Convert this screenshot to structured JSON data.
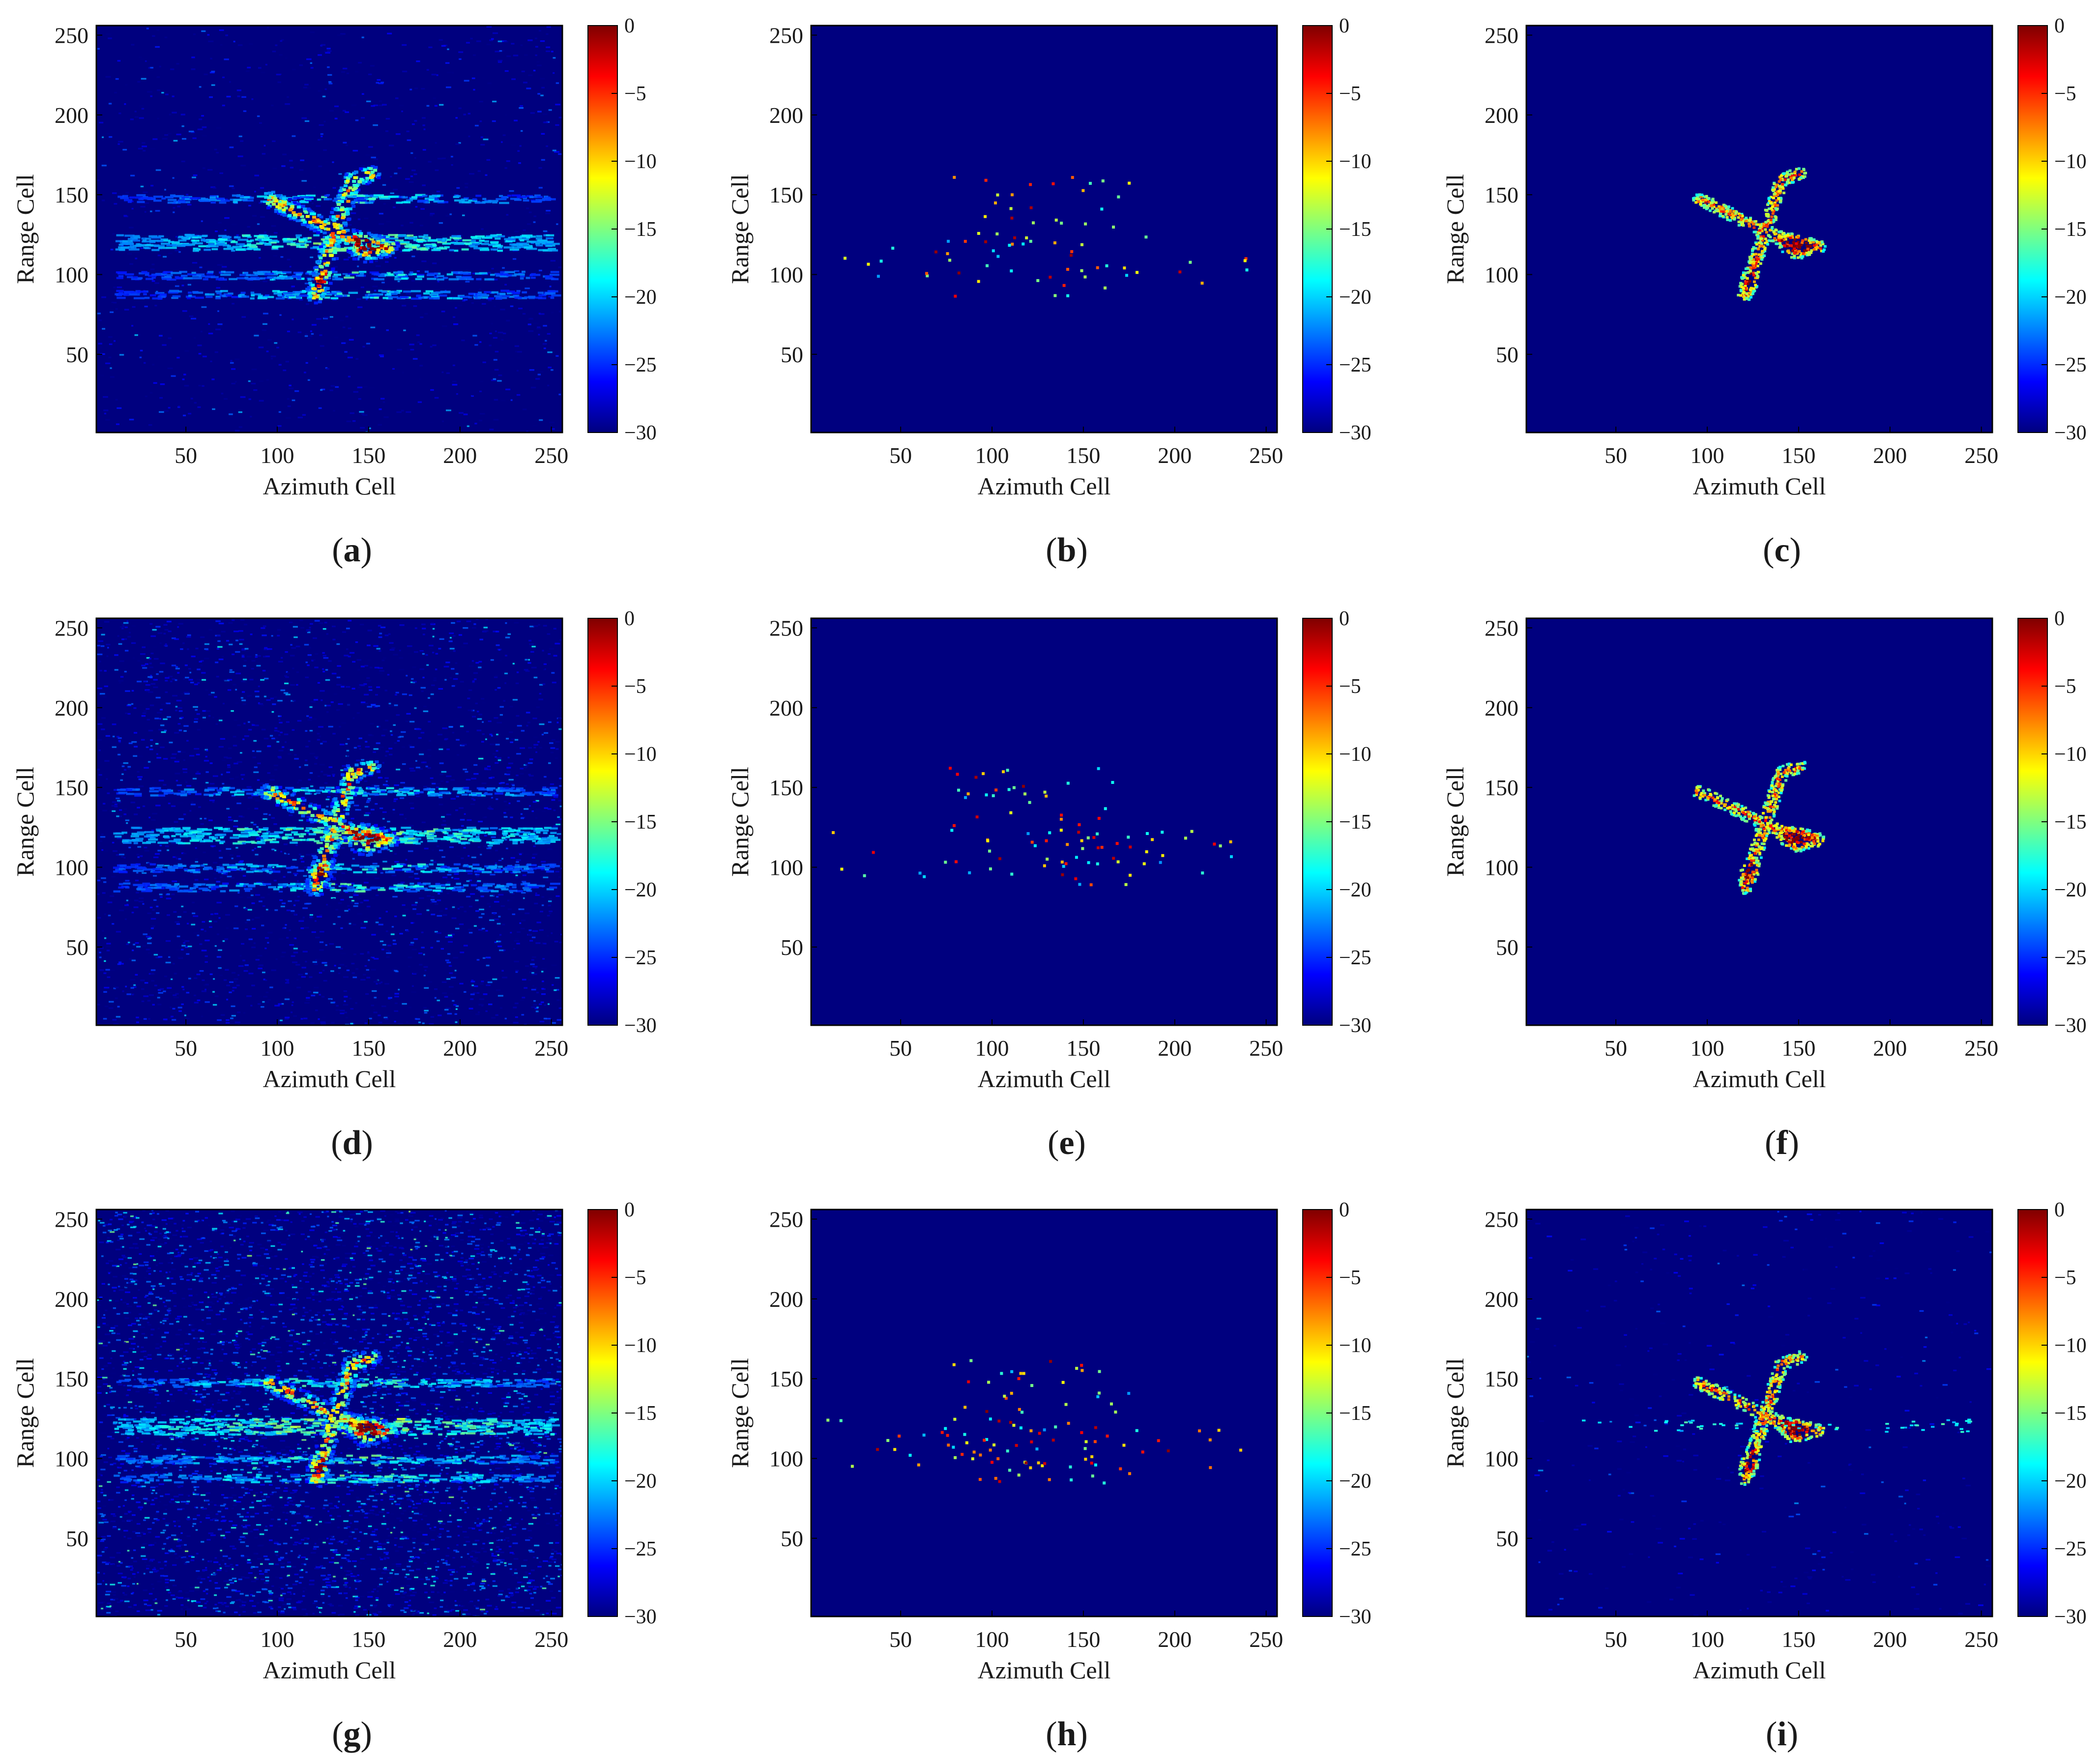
{
  "colormap": {
    "name": "jet",
    "stops": [
      "#00007f",
      "#0000ff",
      "#007fff",
      "#00ffff",
      "#7fff7f",
      "#ffff00",
      "#ff7f00",
      "#ff0000",
      "#7f0000"
    ],
    "range": [
      -30,
      0
    ],
    "ticks": [
      "0",
      "−5",
      "−10",
      "−15",
      "−20",
      "−25",
      "−30"
    ]
  },
  "chart_data": [
    {
      "id": "a",
      "type": "heatmap",
      "caption": "a",
      "render_style": "speckle",
      "noise": 0.12,
      "xlabel": "Azimuth Cell",
      "ylabel": "Range Cell",
      "xticks": [
        50,
        100,
        150,
        200,
        250
      ],
      "yticks": [
        50,
        100,
        150,
        200,
        250
      ],
      "xlim": [
        1,
        256
      ],
      "ylim": [
        1,
        256
      ],
      "zlim": [
        -30,
        0
      ],
      "colorbar": true
    },
    {
      "id": "b",
      "type": "heatmap",
      "caption": "b",
      "render_style": "sparse",
      "noise": 0,
      "xlabel": "Azimuth Cell",
      "ylabel": "Range Cell",
      "xticks": [
        50,
        100,
        150,
        200,
        250
      ],
      "yticks": [
        50,
        100,
        150,
        200,
        250
      ],
      "xlim": [
        1,
        256
      ],
      "ylim": [
        1,
        256
      ],
      "zlim": [
        -30,
        0
      ],
      "colorbar": true
    },
    {
      "id": "c",
      "type": "heatmap",
      "caption": "c",
      "render_style": "clean",
      "noise": 0,
      "xlabel": "Azimuth Cell",
      "ylabel": "Range Cell",
      "xticks": [
        50,
        100,
        150,
        200,
        250
      ],
      "yticks": [
        50,
        100,
        150,
        200,
        250
      ],
      "xlim": [
        1,
        256
      ],
      "ylim": [
        1,
        256
      ],
      "zlim": [
        -30,
        0
      ],
      "colorbar": true
    },
    {
      "id": "d",
      "type": "heatmap",
      "caption": "d",
      "render_style": "speckle",
      "noise": 0.3,
      "xlabel": "Azimuth Cell",
      "ylabel": "Range Cell",
      "xticks": [
        50,
        100,
        150,
        200,
        250
      ],
      "yticks": [
        50,
        100,
        150,
        200,
        250
      ],
      "xlim": [
        1,
        256
      ],
      "ylim": [
        1,
        256
      ],
      "zlim": [
        -30,
        0
      ],
      "colorbar": true
    },
    {
      "id": "e",
      "type": "heatmap",
      "caption": "e",
      "render_style": "sparse",
      "noise": 0,
      "xlabel": "Azimuth Cell",
      "ylabel": "Range Cell",
      "xticks": [
        50,
        100,
        150,
        200,
        250
      ],
      "yticks": [
        50,
        100,
        150,
        200,
        250
      ],
      "xlim": [
        1,
        256
      ],
      "ylim": [
        1,
        256
      ],
      "zlim": [
        -30,
        0
      ],
      "colorbar": true
    },
    {
      "id": "f",
      "type": "heatmap",
      "caption": "f",
      "render_style": "clean",
      "noise": 0,
      "xlabel": "Azimuth Cell",
      "ylabel": "Range Cell",
      "xticks": [
        50,
        100,
        150,
        200,
        250
      ],
      "yticks": [
        50,
        100,
        150,
        200,
        250
      ],
      "xlim": [
        1,
        256
      ],
      "ylim": [
        1,
        256
      ],
      "zlim": [
        -30,
        0
      ],
      "colorbar": true
    },
    {
      "id": "g",
      "type": "heatmap",
      "caption": "g",
      "render_style": "speckle",
      "noise": 0.55,
      "xlabel": "Azimuth Cell",
      "ylabel": "Range Cell",
      "xticks": [
        50,
        100,
        150,
        200,
        250
      ],
      "yticks": [
        50,
        100,
        150,
        200,
        250
      ],
      "xlim": [
        1,
        256
      ],
      "ylim": [
        1,
        256
      ],
      "zlim": [
        -30,
        0
      ],
      "colorbar": true
    },
    {
      "id": "h",
      "type": "heatmap",
      "caption": "h",
      "render_style": "sparse",
      "noise": 0,
      "xlabel": "Azimuth Cell",
      "ylabel": "Range Cell",
      "xticks": [
        50,
        100,
        150,
        200,
        250
      ],
      "yticks": [
        50,
        100,
        150,
        200,
        250
      ],
      "xlim": [
        1,
        256
      ],
      "ylim": [
        1,
        256
      ],
      "zlim": [
        -30,
        0
      ],
      "colorbar": true
    },
    {
      "id": "i",
      "type": "heatmap",
      "caption": "i",
      "render_style": "clean",
      "noise": 0.05,
      "xlabel": "Azimuth Cell",
      "ylabel": "Range Cell",
      "xticks": [
        50,
        100,
        150,
        200,
        250
      ],
      "yticks": [
        50,
        100,
        150,
        200,
        250
      ],
      "xlim": [
        1,
        256
      ],
      "ylim": [
        1,
        256
      ],
      "zlim": [
        -30,
        0
      ],
      "colorbar": true
    }
  ]
}
